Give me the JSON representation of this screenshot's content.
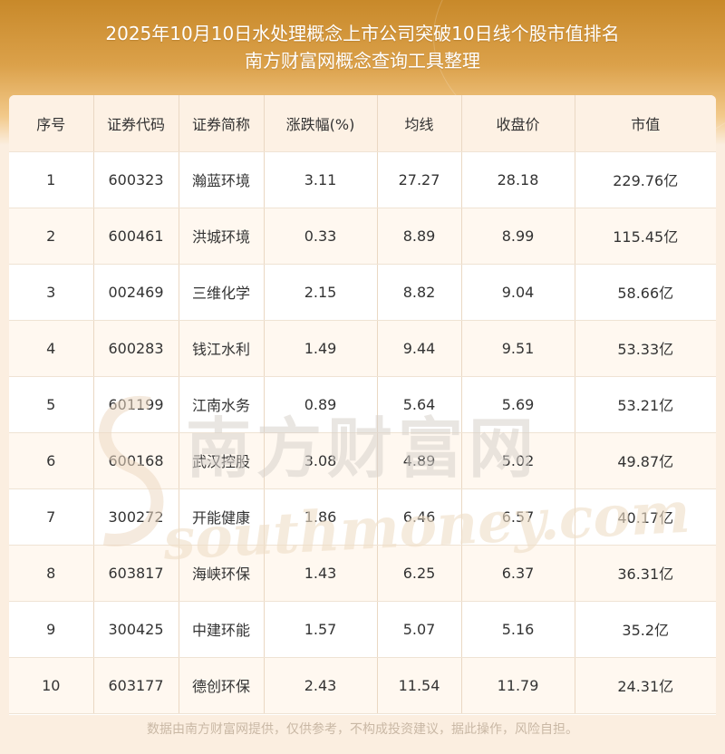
{
  "title": {
    "line1": "2025年10月10日水处理概念上市公司突破10日线个股市值排名",
    "line2": "南方财富网概念查询工具整理"
  },
  "table": {
    "headers": [
      "序号",
      "证券代码",
      "证券简称",
      "涨跌幅(%)",
      "均线",
      "收盘价",
      "市值"
    ],
    "rows": [
      [
        "1",
        "600323",
        "瀚蓝环境",
        "3.11",
        "27.27",
        "28.18",
        "229.76亿"
      ],
      [
        "2",
        "600461",
        "洪城环境",
        "0.33",
        "8.89",
        "8.99",
        "115.45亿"
      ],
      [
        "3",
        "002469",
        "三维化学",
        "2.15",
        "8.82",
        "9.04",
        "58.66亿"
      ],
      [
        "4",
        "600283",
        "钱江水利",
        "1.49",
        "9.44",
        "9.51",
        "53.33亿"
      ],
      [
        "5",
        "601199",
        "江南水务",
        "0.89",
        "5.64",
        "5.69",
        "53.21亿"
      ],
      [
        "6",
        "600168",
        "武汉控股",
        "3.08",
        "4.89",
        "5.02",
        "49.87亿"
      ],
      [
        "7",
        "300272",
        "开能健康",
        "1.86",
        "6.46",
        "6.57",
        "40.17亿"
      ],
      [
        "8",
        "603817",
        "海峡环保",
        "1.43",
        "6.25",
        "6.37",
        "36.31亿"
      ],
      [
        "9",
        "300425",
        "中建环能",
        "1.57",
        "5.07",
        "5.16",
        "35.2亿"
      ],
      [
        "10",
        "603177",
        "德创环保",
        "2.43",
        "11.54",
        "11.79",
        "24.31亿"
      ]
    ]
  },
  "watermark": {
    "cn": "南方财富网",
    "en": "southmoney.com"
  },
  "footer": "数据由南方财富网提供，仅供参考，不构成投资建议，据此操作，风险自担。",
  "colors": {
    "banner": "#d49a3e",
    "header_bg": "#fdf1e4",
    "alt_row": "#fff8f0"
  }
}
